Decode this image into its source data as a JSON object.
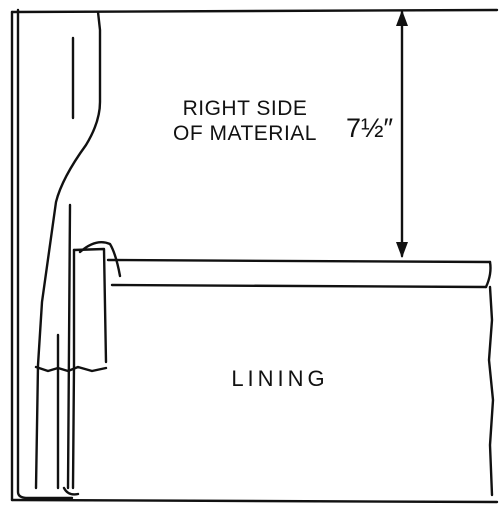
{
  "diagram": {
    "material_label_line1": "RIGHT SIDE",
    "material_label_line2": "OF MATERIAL",
    "dimension_label": "7½″",
    "lining_label": "LINING"
  },
  "colors": {
    "ink": "#111111",
    "paper": "#ffffff"
  }
}
